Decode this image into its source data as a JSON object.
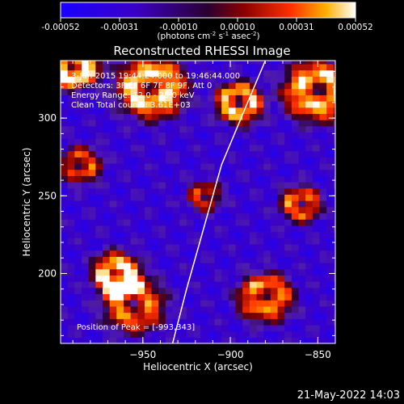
{
  "colorbar": {
    "ticks": [
      "-0.00052",
      "-0.00031",
      "-0.00010",
      "0.00010",
      "0.00031",
      "0.00052"
    ],
    "unit_main": "(photons cm",
    "unit_exp1": "-2",
    "unit_mid": " s",
    "unit_exp2": "-1",
    "unit_end": " asec",
    "unit_exp3": "-2",
    "unit_close": ")"
  },
  "chart_data": {
    "type": "heatmap",
    "title": "Reconstructed RHESSI Image",
    "xlabel": "Heliocentric X (arcsec)",
    "ylabel": "Heliocentric Y (arcsec)",
    "xlim": [
      -997,
      -840
    ],
    "ylim": [
      155,
      337
    ],
    "x_ticks": [
      -950,
      -900,
      -850
    ],
    "x_tick_labels": [
      "−950",
      "−900",
      "−850"
    ],
    "y_ticks": [
      200,
      250,
      300
    ],
    "y_tick_labels": [
      "200",
      "250",
      "300"
    ],
    "color_range": [
      -0.00052,
      0.00052
    ],
    "annotations": [
      "3-Jun-2015 19:44:24.000 to 19:46:44.000",
      "Detectors: 3F 5F 6F 7F 8F 9F, Att 0",
      "Energy Range: 12.0 - 25.0 keV",
      "Clean     Total counts: 3.61E+03"
    ],
    "peak_label": "Position of Peak = [-993,343]",
    "limb_line": [
      [
        -933,
        155
      ],
      [
        -925,
        190
      ],
      [
        -915,
        230
      ],
      [
        -905,
        270
      ],
      [
        -892,
        305
      ],
      [
        -880,
        337
      ]
    ],
    "hot_regions": [
      {
        "x": -990,
        "y": 335,
        "r": 16,
        "v": 0.00052
      },
      {
        "x": -945,
        "y": 320,
        "r": 20,
        "v": 0.00045
      },
      {
        "x": -895,
        "y": 310,
        "r": 14,
        "v": 0.0004
      },
      {
        "x": -850,
        "y": 318,
        "r": 20,
        "v": 0.00042
      },
      {
        "x": -965,
        "y": 200,
        "r": 14,
        "v": 0.00045
      },
      {
        "x": -955,
        "y": 180,
        "r": 18,
        "v": 0.0003
      },
      {
        "x": -880,
        "y": 185,
        "r": 16,
        "v": 0.00035
      },
      {
        "x": -860,
        "y": 245,
        "r": 12,
        "v": 0.0003
      },
      {
        "x": -985,
        "y": 270,
        "r": 12,
        "v": 0.00025
      },
      {
        "x": -915,
        "y": 250,
        "r": 10,
        "v": 0.0002
      }
    ]
  },
  "footer": {
    "timestamp": "21-May-2022 14:03"
  }
}
